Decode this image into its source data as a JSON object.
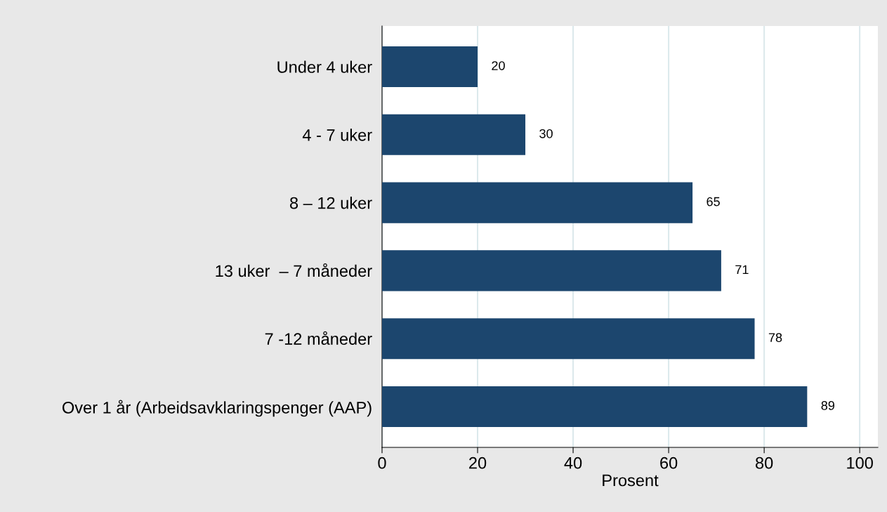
{
  "chart_data": {
    "type": "bar",
    "orientation": "horizontal",
    "xlabel": "Prosent",
    "categories": [
      "Under 4 uker",
      "4 - 7 uker",
      "8 – 12 uker",
      "13 uker  – 7 måneder",
      "7 -12 måneder",
      "Over 1 år (Arbeidsavklaringspenger (AAP)"
    ],
    "values": [
      20,
      30,
      65,
      71,
      78,
      89
    ],
    "color": "#1c466e",
    "xlim": [
      0,
      103.8
    ],
    "xticks": [
      0,
      20,
      40,
      60,
      80,
      100
    ],
    "grid": "x",
    "data_labels": true
  }
}
